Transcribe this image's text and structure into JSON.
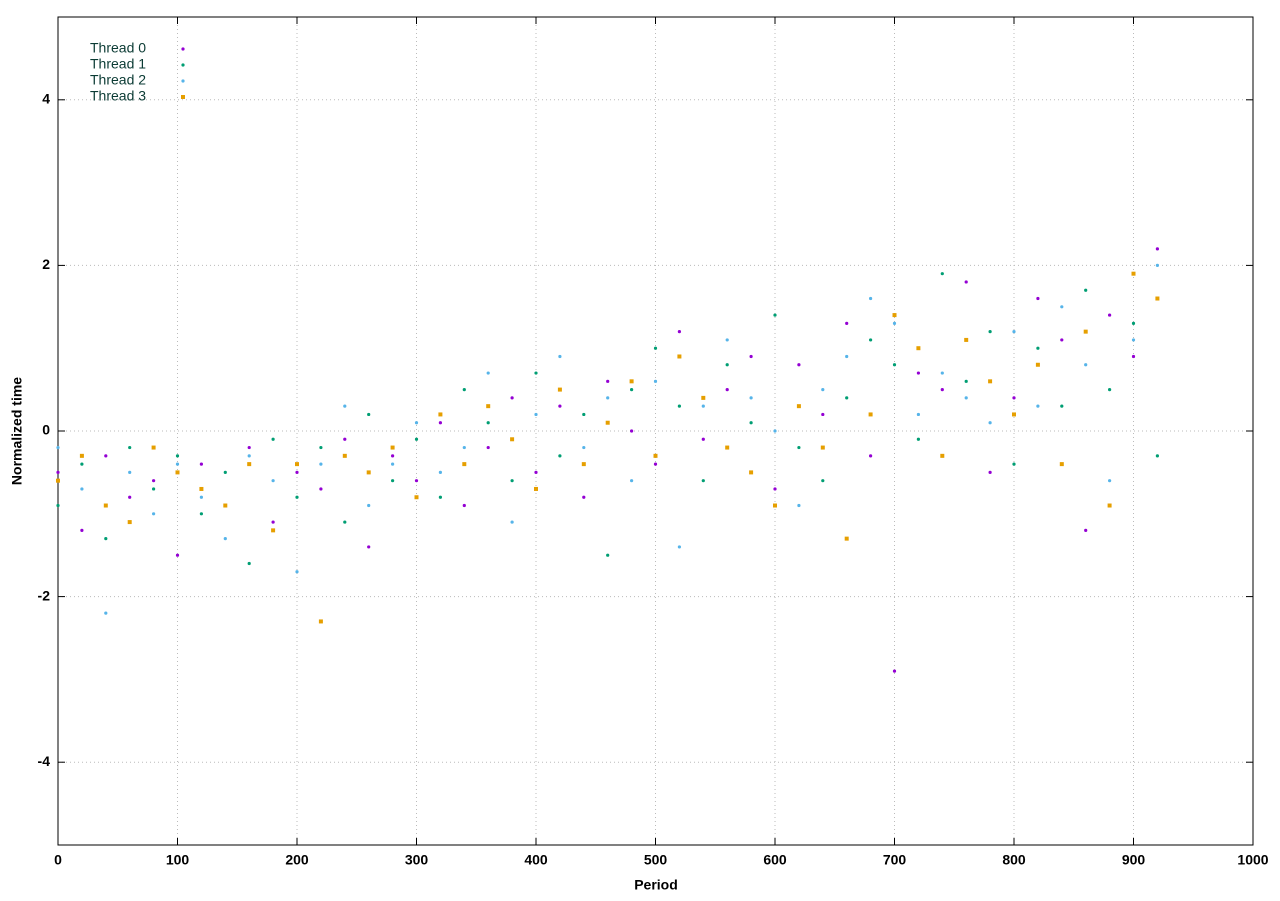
{
  "chart_data": {
    "type": "scatter",
    "xlabel": "Period",
    "ylabel": "Normalized time",
    "x": [
      0,
      20,
      40,
      60,
      80,
      100,
      120,
      140,
      160,
      180,
      200,
      220,
      240,
      260,
      280,
      300,
      320,
      340,
      360,
      380,
      400,
      420,
      440,
      460,
      480,
      500,
      520,
      540,
      560,
      580,
      600,
      620,
      640,
      660,
      680,
      700,
      720,
      740,
      760,
      780,
      800,
      820,
      840,
      860,
      880,
      900,
      920
    ],
    "series": [
      {
        "name": "Thread 0",
        "color": "#9400d3",
        "values": [
          -0.5,
          -1.2,
          -0.3,
          -0.8,
          -0.6,
          -1.5,
          -0.4,
          -0.9,
          -0.2,
          -1.1,
          -0.5,
          -0.7,
          -0.1,
          -1.4,
          -0.3,
          -0.6,
          0.1,
          -0.9,
          -0.2,
          0.4,
          -0.5,
          0.3,
          -0.8,
          0.6,
          0.0,
          -0.4,
          1.2,
          -0.1,
          0.5,
          0.9,
          -0.7,
          0.8,
          0.2,
          1.3,
          -0.3,
          -2.9,
          0.7,
          0.5,
          1.8,
          -0.5,
          0.4,
          1.6,
          1.1,
          -1.2,
          1.4,
          0.9,
          2.2
        ]
      },
      {
        "name": "Thread 1",
        "color": "#009e73",
        "values": [
          -0.9,
          -0.4,
          -1.3,
          -0.2,
          -0.7,
          -0.3,
          -1.0,
          -0.5,
          -1.6,
          -0.1,
          -0.8,
          -0.2,
          -1.1,
          0.2,
          -0.6,
          -0.1,
          -0.8,
          0.5,
          0.1,
          -0.6,
          0.7,
          -0.3,
          0.2,
          -1.5,
          0.5,
          1.0,
          0.3,
          -0.6,
          0.8,
          0.1,
          1.4,
          -0.2,
          -0.6,
          0.4,
          1.1,
          0.8,
          -0.1,
          1.9,
          0.6,
          1.2,
          -0.4,
          1.0,
          0.3,
          1.7,
          0.5,
          1.3,
          -0.3
        ]
      },
      {
        "name": "Thread 2",
        "color": "#56b4e9",
        "values": [
          -0.2,
          -0.7,
          -2.2,
          -0.5,
          -1.0,
          -0.4,
          -0.8,
          -1.3,
          -0.3,
          -0.6,
          -1.7,
          -0.4,
          0.3,
          -0.9,
          -0.4,
          0.1,
          -0.5,
          -0.2,
          0.7,
          -1.1,
          0.2,
          0.9,
          -0.2,
          0.4,
          -0.6,
          0.6,
          -1.4,
          0.3,
          1.1,
          0.4,
          0.0,
          -0.9,
          0.5,
          0.9,
          1.6,
          1.3,
          0.2,
          0.7,
          0.4,
          0.1,
          1.2,
          0.3,
          1.5,
          0.8,
          -0.6,
          1.1,
          2.0
        ]
      },
      {
        "name": "Thread 3",
        "color": "#e69f00",
        "values": [
          -0.6,
          -0.3,
          -0.9,
          -1.1,
          -0.2,
          -0.5,
          -0.7,
          -0.9,
          -0.4,
          -1.2,
          -0.4,
          -2.3,
          -0.3,
          -0.5,
          -0.2,
          -0.8,
          0.2,
          -0.4,
          0.3,
          -0.1,
          -0.7,
          0.5,
          -0.4,
          0.1,
          0.6,
          -0.3,
          0.9,
          0.4,
          -0.2,
          -0.5,
          -0.9,
          0.3,
          -0.2,
          -1.3,
          0.2,
          1.4,
          1.0,
          -0.3,
          1.1,
          0.6,
          0.2,
          0.8,
          -0.4,
          1.2,
          -0.9,
          1.9,
          1.6
        ]
      }
    ],
    "xlim": [
      0,
      1000
    ],
    "xticks": [
      0,
      100,
      200,
      300,
      400,
      500,
      600,
      700,
      800,
      900,
      1000
    ],
    "ylim": [
      -5,
      5
    ],
    "yticks": [
      -4,
      -2,
      0,
      2,
      4
    ],
    "grid": true,
    "legend": "top-left"
  }
}
